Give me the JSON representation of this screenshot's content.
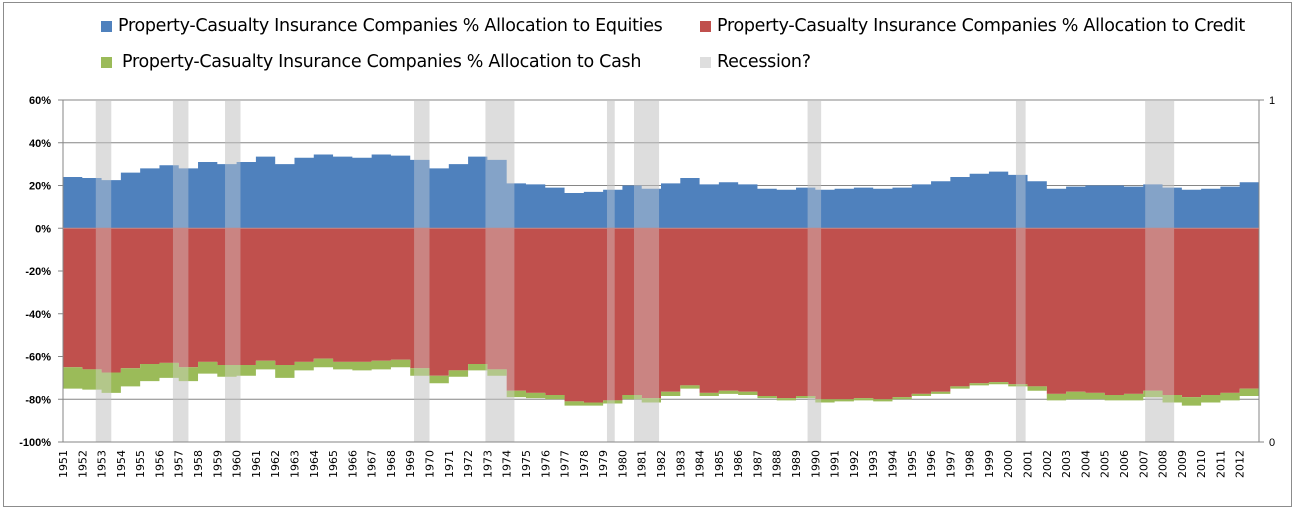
{
  "chart_data": {
    "type": "area",
    "title": "",
    "xlabel": "",
    "ylabel": "",
    "ylim": [
      -1.0,
      0.6
    ],
    "y2lim": [
      0,
      1
    ],
    "grid": true,
    "legend_position": "top",
    "y_ticks": [
      "60%",
      "40%",
      "20%",
      "0%",
      "-20%",
      "-40%",
      "-60%",
      "-80%",
      "-100%"
    ],
    "y_tick_values": [
      0.6,
      0.4,
      0.2,
      0.0,
      -0.2,
      -0.4,
      -0.6,
      -0.8,
      -1.0
    ],
    "y2_ticks": [
      "1",
      "0"
    ],
    "y2_tick_values": [
      1,
      0
    ],
    "categories": [
      "1951",
      "1952",
      "1953",
      "1954",
      "1955",
      "1956",
      "1957",
      "1958",
      "1959",
      "1960",
      "1961",
      "1962",
      "1963",
      "1964",
      "1965",
      "1966",
      "1967",
      "1968",
      "1969",
      "1970",
      "1971",
      "1972",
      "1973",
      "1974",
      "1975",
      "1976",
      "1977",
      "1978",
      "1979",
      "1980",
      "1981",
      "1982",
      "1983",
      "1984",
      "1985",
      "1986",
      "1987",
      "1988",
      "1989",
      "1990",
      "1991",
      "1992",
      "1993",
      "1994",
      "1995",
      "1996",
      "1997",
      "1998",
      "1999",
      "2000",
      "2001",
      "2002",
      "2003",
      "2004",
      "2005",
      "2006",
      "2007",
      "2008",
      "2009",
      "2010",
      "2011",
      "2012"
    ],
    "series": [
      {
        "name": "Property-Casualty  Insurance Companies %  Allocation to Equities",
        "color": "#4f81bd",
        "values": [
          0.24,
          0.235,
          0.225,
          0.26,
          0.28,
          0.295,
          0.28,
          0.31,
          0.3,
          0.31,
          0.335,
          0.3,
          0.33,
          0.345,
          0.335,
          0.33,
          0.345,
          0.34,
          0.32,
          0.28,
          0.3,
          0.335,
          0.32,
          0.21,
          0.205,
          0.19,
          0.165,
          0.17,
          0.18,
          0.2,
          0.185,
          0.21,
          0.235,
          0.205,
          0.215,
          0.205,
          0.185,
          0.18,
          0.19,
          0.18,
          0.185,
          0.19,
          0.185,
          0.19,
          0.205,
          0.22,
          0.24,
          0.255,
          0.265,
          0.25,
          0.22,
          0.185,
          0.195,
          0.2,
          0.2,
          0.195,
          0.205,
          0.19,
          0.18,
          0.185,
          0.195,
          0.215
        ]
      },
      {
        "name": "Property-Casualty  Insurance Companies %  Allocation to Credit",
        "color": "#c0504d",
        "values": [
          -0.65,
          -0.66,
          -0.675,
          -0.655,
          -0.635,
          -0.63,
          -0.65,
          -0.625,
          -0.64,
          -0.64,
          -0.62,
          -0.64,
          -0.625,
          -0.61,
          -0.625,
          -0.625,
          -0.62,
          -0.615,
          -0.655,
          -0.69,
          -0.665,
          -0.635,
          -0.66,
          -0.76,
          -0.77,
          -0.78,
          -0.81,
          -0.815,
          -0.805,
          -0.78,
          -0.795,
          -0.765,
          -0.735,
          -0.77,
          -0.76,
          -0.765,
          -0.785,
          -0.795,
          -0.785,
          -0.8,
          -0.8,
          -0.795,
          -0.8,
          -0.79,
          -0.775,
          -0.765,
          -0.74,
          -0.725,
          -0.72,
          -0.73,
          -0.74,
          -0.775,
          -0.765,
          -0.77,
          -0.78,
          -0.775,
          -0.76,
          -0.78,
          -0.79,
          -0.78,
          -0.77,
          -0.75
        ]
      },
      {
        "name": "Property-Casualty  Insurance Companies %  Allocation to Cash",
        "color": "#9bbb59",
        "values": [
          -0.1,
          -0.095,
          -0.095,
          -0.085,
          -0.08,
          -0.07,
          -0.065,
          -0.055,
          -0.055,
          -0.05,
          -0.04,
          -0.06,
          -0.04,
          -0.04,
          -0.035,
          -0.04,
          -0.04,
          -0.035,
          -0.035,
          -0.035,
          -0.03,
          -0.03,
          -0.03,
          -0.03,
          -0.025,
          -0.02,
          -0.02,
          -0.015,
          -0.015,
          -0.02,
          -0.02,
          -0.02,
          -0.015,
          -0.015,
          -0.015,
          -0.015,
          -0.01,
          -0.01,
          -0.01,
          -0.015,
          -0.01,
          -0.01,
          -0.01,
          -0.01,
          -0.01,
          -0.01,
          -0.01,
          -0.01,
          -0.01,
          -0.01,
          -0.02,
          -0.03,
          -0.035,
          -0.03,
          -0.025,
          -0.03,
          -0.03,
          -0.035,
          -0.04,
          -0.035,
          -0.035,
          -0.035
        ]
      }
    ],
    "recession": {
      "name": "Recession?",
      "color": "#d9d9d9",
      "periods": [
        [
          1952.7,
          1953.5
        ],
        [
          1956.7,
          1957.5
        ],
        [
          1959.4,
          1960.2
        ],
        [
          1969.2,
          1970.0
        ],
        [
          1972.9,
          1974.4
        ],
        [
          1979.2,
          1979.6
        ],
        [
          1980.6,
          1981.9
        ],
        [
          1989.6,
          1990.3
        ],
        [
          2000.4,
          2000.9
        ],
        [
          2007.1,
          2008.6
        ]
      ]
    }
  }
}
